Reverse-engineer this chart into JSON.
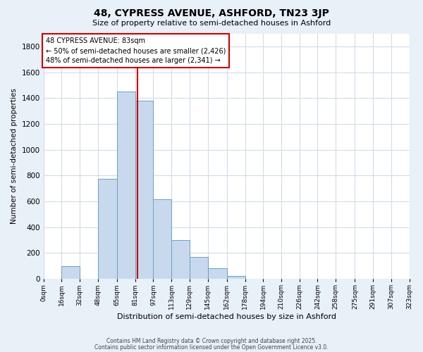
{
  "title": "48, CYPRESS AVENUE, ASHFORD, TN23 3JP",
  "subtitle": "Size of property relative to semi-detached houses in Ashford",
  "xlabel": "Distribution of semi-detached houses by size in Ashford",
  "ylabel": "Number of semi-detached properties",
  "bar_left_edges": [
    0,
    16,
    32,
    48,
    65,
    81,
    97,
    113,
    129,
    145,
    162,
    178,
    194,
    210,
    226,
    242,
    258,
    275,
    291,
    307
  ],
  "bar_widths": [
    16,
    16,
    16,
    17,
    16,
    16,
    16,
    16,
    16,
    17,
    16,
    16,
    16,
    16,
    16,
    16,
    17,
    16,
    16,
    16
  ],
  "bar_heights": [
    2,
    100,
    0,
    775,
    1450,
    1380,
    615,
    300,
    170,
    80,
    25,
    0,
    0,
    0,
    0,
    0,
    0,
    0,
    0,
    0
  ],
  "bar_color": "#c8d9ed",
  "bar_edge_color": "#6aa0c7",
  "x_tick_labels": [
    "0sqm",
    "16sqm",
    "32sqm",
    "48sqm",
    "65sqm",
    "81sqm",
    "97sqm",
    "113sqm",
    "129sqm",
    "145sqm",
    "162sqm",
    "178sqm",
    "194sqm",
    "210sqm",
    "226sqm",
    "242sqm",
    "258sqm",
    "275sqm",
    "291sqm",
    "307sqm",
    "323sqm"
  ],
  "ylim": [
    0,
    1900
  ],
  "yticks": [
    0,
    200,
    400,
    600,
    800,
    1000,
    1200,
    1400,
    1600,
    1800
  ],
  "vline_x": 83,
  "vline_color": "#cc0000",
  "annotation_title": "48 CYPRESS AVENUE: 83sqm",
  "annotation_line1": "← 50% of semi-detached houses are smaller (2,426)",
  "annotation_line2": "48% of semi-detached houses are larger (2,341) →",
  "annotation_box_facecolor": "#ffffff",
  "annotation_box_edgecolor": "#cc0000",
  "grid_color": "#d0dce8",
  "figure_background_color": "#e8f0f8",
  "plot_background_color": "#ffffff",
  "footnote1": "Contains HM Land Registry data © Crown copyright and database right 2025.",
  "footnote2": "Contains public sector information licensed under the Open Government Licence v3.0."
}
